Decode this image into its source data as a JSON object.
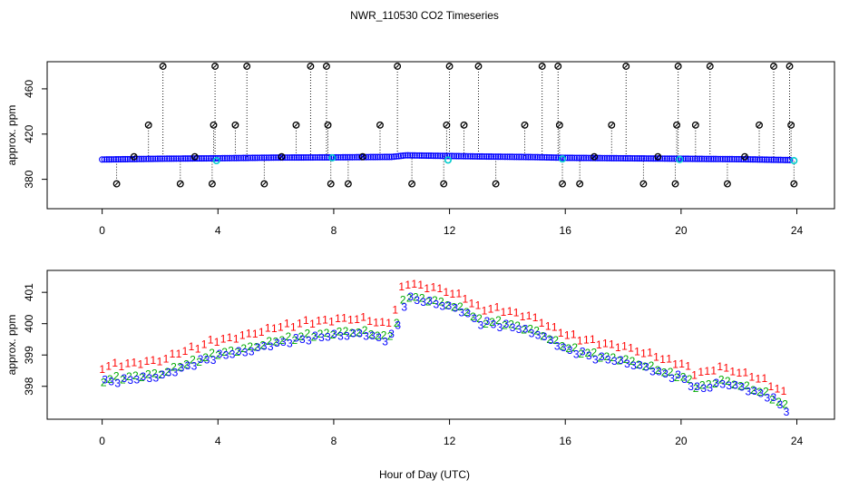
{
  "chart_data": {
    "title": "NWR_110530  CO2 Timeseries",
    "xlabel": "Hour of Day (UTC)",
    "colors": {
      "flag": "#000000",
      "point_blue": "#0000ff",
      "point_cyan": "#00cccc",
      "series1": "#ff0000",
      "series2": "#00aa00",
      "series3": "#0000ff",
      "frame": "#000000"
    },
    "panels": [
      {
        "type": "scatter",
        "ylabel": "approx. ppm",
        "xlim": [
          -1.9,
          25.3
        ],
        "ylim": [
          354,
          484
        ],
        "xticks": [
          0,
          4,
          8,
          12,
          16,
          20,
          24
        ],
        "xtick_labels": [
          "0",
          "4",
          "8",
          "12",
          "16",
          "20",
          "24"
        ],
        "yticks": [
          380,
          420,
          460
        ],
        "ytick_labels": [
          "380",
          "420",
          "460"
        ],
        "baseline_knots": {
          "x": [
            0,
            2,
            4,
            6,
            8,
            10,
            10.5,
            12,
            13,
            15,
            16,
            18,
            20,
            22,
            23.8
          ],
          "y": [
            397.5,
            398.2,
            398.6,
            399.2,
            399.4,
            399.8,
            401.2,
            400.6,
            400.2,
            399.6,
            399.0,
            398.6,
            398.2,
            397.8,
            397.0
          ]
        },
        "flag_points_x": [
          0.5,
          1.1,
          1.6,
          2.1,
          2.7,
          3.2,
          3.8,
          3.85,
          3.9,
          4.6,
          5.0,
          5.6,
          6.2,
          6.7,
          7.2,
          7.75,
          7.8,
          7.9,
          8.5,
          9.0,
          9.6,
          10.2,
          10.7,
          11.8,
          11.9,
          12.0,
          12.5,
          13.0,
          13.6,
          14.6,
          15.2,
          15.75,
          15.8,
          15.9,
          16.5,
          17.0,
          17.6,
          18.1,
          18.7,
          19.2,
          19.8,
          19.85,
          19.9,
          20.5,
          21.0,
          21.6,
          22.2,
          22.7,
          23.2,
          23.75,
          23.8,
          23.9
        ],
        "flag_points_y": [
          376,
          400,
          428,
          480,
          376,
          400,
          376,
          428,
          480,
          428,
          480,
          376,
          400,
          428,
          480,
          480,
          428,
          376,
          376,
          400,
          428,
          480,
          376,
          376,
          428,
          480,
          428,
          480,
          376,
          428,
          480,
          480,
          428,
          376,
          376,
          400,
          428,
          480,
          376,
          400,
          376,
          428,
          480,
          428,
          480,
          376,
          400,
          428,
          480,
          480,
          428,
          376
        ],
        "cyan_points_x": [
          3.95,
          11.95,
          19.95,
          15.9,
          7.95,
          23.9
        ],
        "cyan_points_y": [
          396.5,
          397.0,
          397.5,
          398.0,
          399.0,
          396.5
        ]
      },
      {
        "type": "scatter",
        "ylabel": "approx. ppm",
        "xlim": [
          -1.9,
          25.3
        ],
        "ylim": [
          396.95,
          401.7
        ],
        "xticks": [
          0,
          4,
          8,
          12,
          16,
          20,
          24
        ],
        "xtick_labels": [
          "0",
          "4",
          "8",
          "12",
          "16",
          "20",
          "24"
        ],
        "yticks": [
          398,
          399,
          400,
          401
        ],
        "ytick_labels": [
          "398",
          "399",
          "400",
          "401"
        ],
        "series_markers": [
          "1",
          "2",
          "3"
        ],
        "knots_x": [
          0,
          0.5,
          1,
          2,
          3,
          4,
          5,
          6,
          7,
          8,
          9,
          9.8,
          10.1,
          10.35,
          10.5,
          11,
          11.6,
          12,
          12.5,
          13,
          14,
          15,
          15.9,
          16,
          17,
          18,
          19,
          19.6,
          20,
          20.5,
          21,
          21.3,
          22,
          23,
          23.8
        ],
        "knots_y": [
          398.2,
          398.25,
          398.3,
          398.4,
          398.75,
          399.05,
          399.2,
          399.45,
          399.6,
          399.7,
          399.75,
          399.55,
          399.8,
          400.6,
          400.9,
          400.8,
          400.7,
          400.6,
          400.45,
          400.1,
          400.0,
          399.75,
          399.3,
          399.25,
          399.0,
          398.85,
          398.6,
          398.4,
          398.35,
          398.0,
          398.05,
          398.2,
          398.05,
          397.75,
          397.2
        ]
      }
    ]
  }
}
